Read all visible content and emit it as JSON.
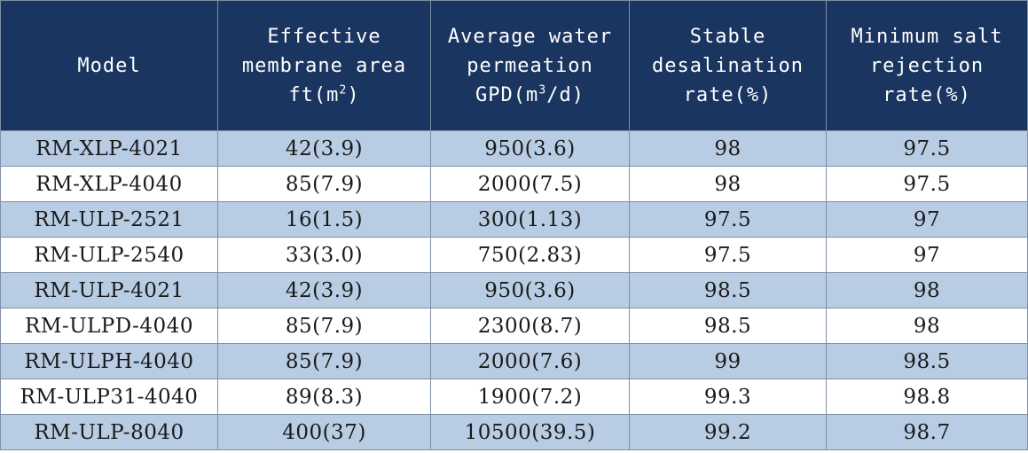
{
  "table": {
    "headers": {
      "model": "Model",
      "area_line1": "Effective",
      "area_line2": "membrane area",
      "area_line3_pre": "ft(m",
      "area_line3_sup": "2",
      "area_line3_post": ")",
      "perm_line1": "Average water",
      "perm_line2": "permeation",
      "perm_line3_pre": "GPD(m",
      "perm_line3_sup": "3",
      "perm_line3_post": "/d)",
      "stable_line1": "Stable",
      "stable_line2": "desalination",
      "stable_line3": "rate(%)",
      "min_line1": "Minimum salt",
      "min_line2": "rejection",
      "min_line3": "rate(%)"
    },
    "rows": [
      {
        "model": "RM-XLP-4021",
        "area": "42(3.9)",
        "permeation": "950(3.6)",
        "stable": "98",
        "minimum": "97.5"
      },
      {
        "model": "RM-XLP-4040",
        "area": "85(7.9)",
        "permeation": "2000(7.5)",
        "stable": "98",
        "minimum": "97.5"
      },
      {
        "model": "RM-ULP-2521",
        "area": "16(1.5)",
        "permeation": "300(1.13)",
        "stable": "97.5",
        "minimum": "97"
      },
      {
        "model": "RM-ULP-2540",
        "area": "33(3.0)",
        "permeation": "750(2.83)",
        "stable": "97.5",
        "minimum": "97"
      },
      {
        "model": "RM-ULP-4021",
        "area": "42(3.9)",
        "permeation": "950(3.6)",
        "stable": "98.5",
        "minimum": "98"
      },
      {
        "model": "RM-ULPD-4040",
        "area": "85(7.9)",
        "permeation": "2300(8.7)",
        "stable": "98.5",
        "minimum": "98"
      },
      {
        "model": "RM-ULPH-4040",
        "area": "85(7.9)",
        "permeation": "2000(7.6)",
        "stable": "99",
        "minimum": "98.5"
      },
      {
        "model": "RM-ULP31-4040",
        "area": "89(8.3)",
        "permeation": "1900(7.2)",
        "stable": "99.3",
        "minimum": "98.8"
      },
      {
        "model": "RM-ULP-8040",
        "area": "400(37)",
        "permeation": "10500(39.5)",
        "stable": "99.2",
        "minimum": "98.7"
      }
    ],
    "colors": {
      "header_bg": "#1a3560",
      "row_shaded": "#b8cce4",
      "row_plain": "#ffffff",
      "border": "#7f8fa6"
    }
  }
}
